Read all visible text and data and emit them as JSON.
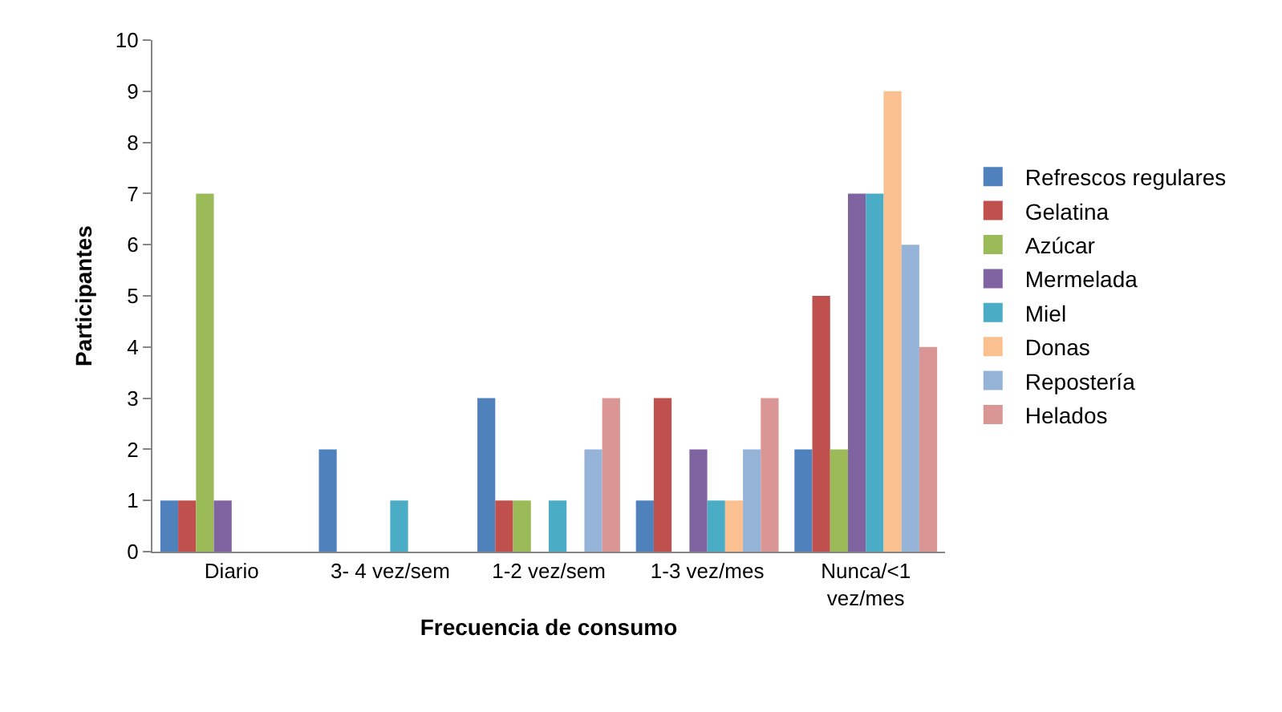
{
  "chart_data": {
    "type": "bar",
    "xlabel": "Frecuencia de consumo",
    "ylabel": "Participantes",
    "categories": [
      "Diario",
      "3- 4 vez/sem",
      "1-2 vez/sem",
      "1-3 vez/mes",
      "Nunca/<1 vez/mes"
    ],
    "series": [
      {
        "name": "Refrescos regulares",
        "color": "#4f81bd",
        "values": [
          1,
          2,
          3,
          1,
          2
        ]
      },
      {
        "name": "Gelatina",
        "color": "#c0504d",
        "values": [
          1,
          0,
          1,
          3,
          5
        ]
      },
      {
        "name": "Azúcar",
        "color": "#9bbb59",
        "values": [
          7,
          0,
          1,
          0,
          2
        ]
      },
      {
        "name": "Mermelada",
        "color": "#8064a2",
        "values": [
          1,
          0,
          0,
          2,
          7
        ]
      },
      {
        "name": "Miel",
        "color": "#4bacc6",
        "values": [
          0,
          1,
          1,
          1,
          7
        ]
      },
      {
        "name": "Donas",
        "color": "#fac090",
        "values": [
          0,
          0,
          0,
          1,
          9
        ]
      },
      {
        "name": "Repostería",
        "color": "#95b3d7",
        "values": [
          0,
          0,
          2,
          2,
          6
        ]
      },
      {
        "name": "Helados",
        "color": "#d99694",
        "values": [
          0,
          0,
          3,
          3,
          4
        ]
      }
    ],
    "ylim": [
      0,
      10
    ],
    "yticks": [
      0,
      1,
      2,
      3,
      4,
      5,
      6,
      7,
      8,
      9,
      10
    ],
    "grid": false,
    "legend": "right"
  }
}
